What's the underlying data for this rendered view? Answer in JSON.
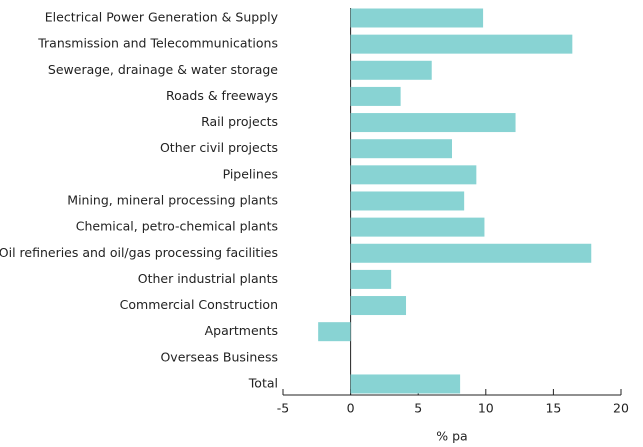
{
  "chart_data": {
    "type": "barh",
    "x_label": "% pa",
    "categories": [
      "Electrical Power Generation & Supply",
      "Transmission and Telecommunications",
      "Sewerage, drainage & water storage",
      "Roads & freeways",
      "Rail projects",
      "Other civil projects",
      "Pipelines",
      "Mining, mineral processing plants",
      "Chemical, petro-chemical plants",
      "Oil refineries and oil/gas processing facilities",
      "Other industrial plants",
      "Commercial Construction",
      "Apartments",
      "Overseas Business",
      "Total"
    ],
    "values": [
      9.8,
      16.4,
      6.0,
      3.7,
      12.2,
      7.5,
      9.3,
      8.4,
      9.9,
      17.8,
      3.0,
      4.1,
      -2.4,
      null,
      8.1
    ],
    "color": "#88d3d3",
    "xlim": [
      -5,
      20
    ],
    "xticks": [
      -5,
      0,
      5,
      10,
      15,
      20
    ]
  }
}
